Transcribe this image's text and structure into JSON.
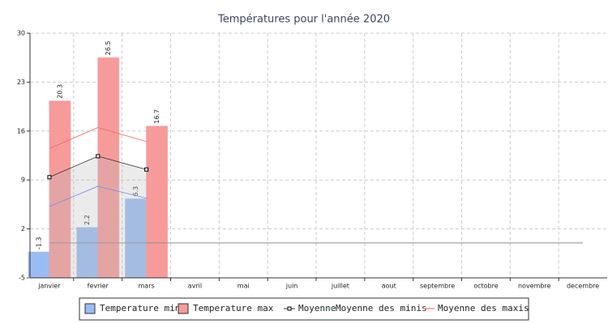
{
  "chart_data": {
    "type": "bar",
    "title": "Températures pour l'année 2020",
    "categories": [
      "janvier",
      "fevrier",
      "mars",
      "avril",
      "mai",
      "juin",
      "juillet",
      "aout",
      "septembre",
      "octobre",
      "novembre",
      "decembre"
    ],
    "series": [
      {
        "name": "Temperature min",
        "style": "bar",
        "color": "#9bbcf3",
        "values": [
          -1.3,
          2.2,
          6.3,
          null,
          null,
          null,
          null,
          null,
          null,
          null,
          null,
          null
        ]
      },
      {
        "name": "Temperature max",
        "style": "bar",
        "color": "#f79a9a",
        "values": [
          20.3,
          26.5,
          16.7,
          null,
          null,
          null,
          null,
          null,
          null,
          null,
          null,
          null
        ]
      },
      {
        "name": "Moyenne",
        "style": "area",
        "color": "#333333",
        "marker": "square",
        "values": [
          9.4,
          12.4,
          10.5,
          null,
          null,
          null,
          null,
          null,
          null,
          null,
          null,
          null
        ]
      },
      {
        "name": "Moyenne des minis",
        "style": "line",
        "color": "#6f8fe0",
        "legend_color": "#7cc8c0",
        "values": [
          5.2,
          8.1,
          6.4,
          null,
          null,
          null,
          null,
          null,
          null,
          null,
          null,
          null
        ]
      },
      {
        "name": "Moyenne des maxis",
        "style": "line",
        "color": "#ee6666",
        "values": [
          13.5,
          16.5,
          14.5,
          null,
          null,
          null,
          null,
          null,
          null,
          null,
          null,
          null
        ]
      }
    ],
    "reference_line": 0,
    "ylim": [
      -5,
      30
    ],
    "yticks": [
      -5,
      2,
      9,
      16,
      23,
      30
    ],
    "grid": true
  }
}
